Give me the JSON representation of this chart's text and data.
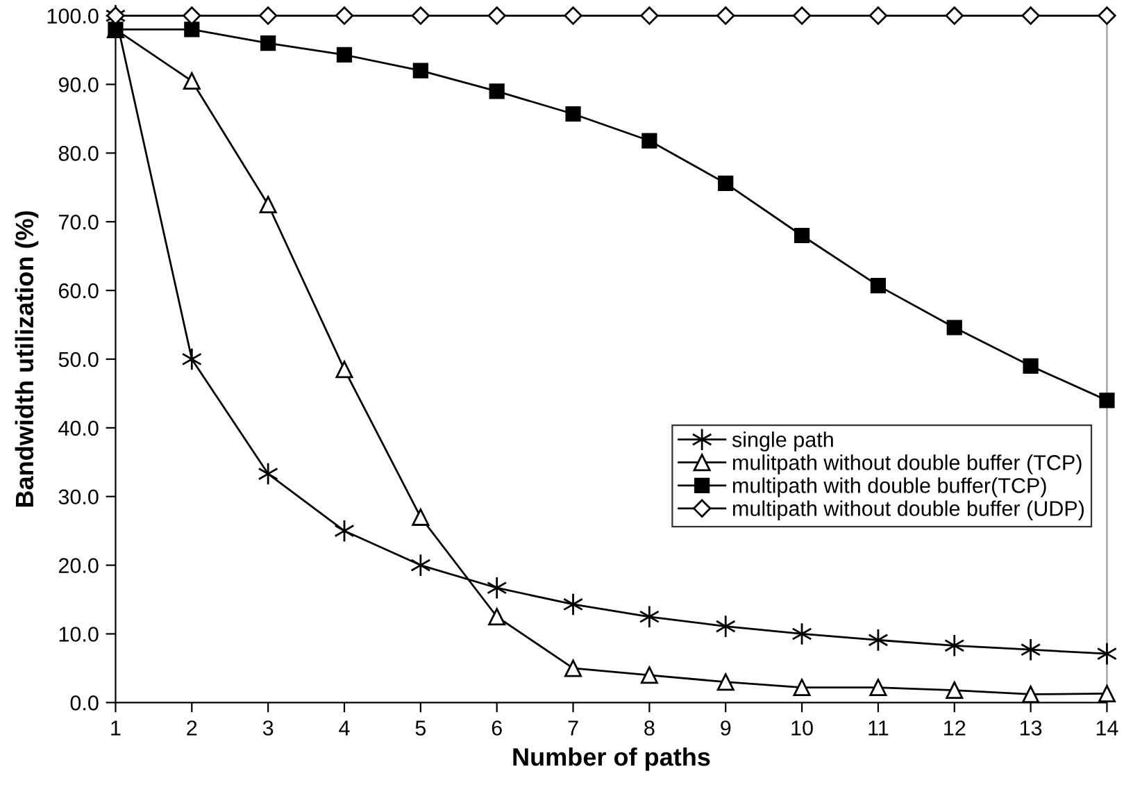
{
  "chart_data": {
    "type": "line",
    "xlabel": "Number of paths",
    "ylabel": "Bandwidth utilization (%)",
    "x": [
      1,
      2,
      3,
      4,
      5,
      6,
      7,
      8,
      9,
      10,
      11,
      12,
      13,
      14
    ],
    "xlim": [
      1,
      14
    ],
    "xticks": [
      1,
      2,
      3,
      4,
      5,
      6,
      7,
      8,
      9,
      10,
      11,
      12,
      13,
      14
    ],
    "ylim": [
      0,
      100
    ],
    "yticks": [
      {
        "value": 0,
        "label": "0.0"
      },
      {
        "value": 10,
        "label": "10.0"
      },
      {
        "value": 20,
        "label": "20.0"
      },
      {
        "value": 30,
        "label": "30.0"
      },
      {
        "value": 40,
        "label": "40.0"
      },
      {
        "value": 50,
        "label": "50.0"
      },
      {
        "value": 60,
        "label": "60.0"
      },
      {
        "value": 70,
        "label": "70.0"
      },
      {
        "value": 80,
        "label": "80.0"
      },
      {
        "value": 90,
        "label": "90.0"
      },
      {
        "value": 100,
        "label": "100.0"
      }
    ],
    "grid": false,
    "legend": "right",
    "line_style": "solid",
    "series": [
      {
        "name": "single path",
        "color": "#000000",
        "marker": "cross",
        "values": [
          100,
          50,
          33.3,
          25,
          20,
          16.7,
          14.3,
          12.5,
          11.1,
          10,
          9.1,
          8.3,
          7.7,
          7.1
        ]
      },
      {
        "name": "mulitpath without double buffer (TCP)",
        "color": "#000000",
        "marker": "triangle",
        "values": [
          98,
          90.5,
          72.5,
          48.5,
          27,
          12.5,
          5,
          4,
          3,
          2.2,
          2.2,
          1.8,
          1.2,
          1.3
        ]
      },
      {
        "name": "multipath with double buffer(TCP)",
        "color": "#000000",
        "marker": "square",
        "values": [
          98,
          98,
          96,
          94.3,
          92,
          89,
          85.7,
          81.8,
          75.6,
          68,
          60.7,
          54.6,
          49,
          44
        ]
      },
      {
        "name": "multipath without double buffer (UDP)",
        "color": "#000000",
        "marker": "diamond",
        "values": [
          100,
          100,
          100,
          100,
          100,
          100,
          100,
          100,
          100,
          100,
          100,
          100,
          100,
          100
        ]
      }
    ]
  }
}
